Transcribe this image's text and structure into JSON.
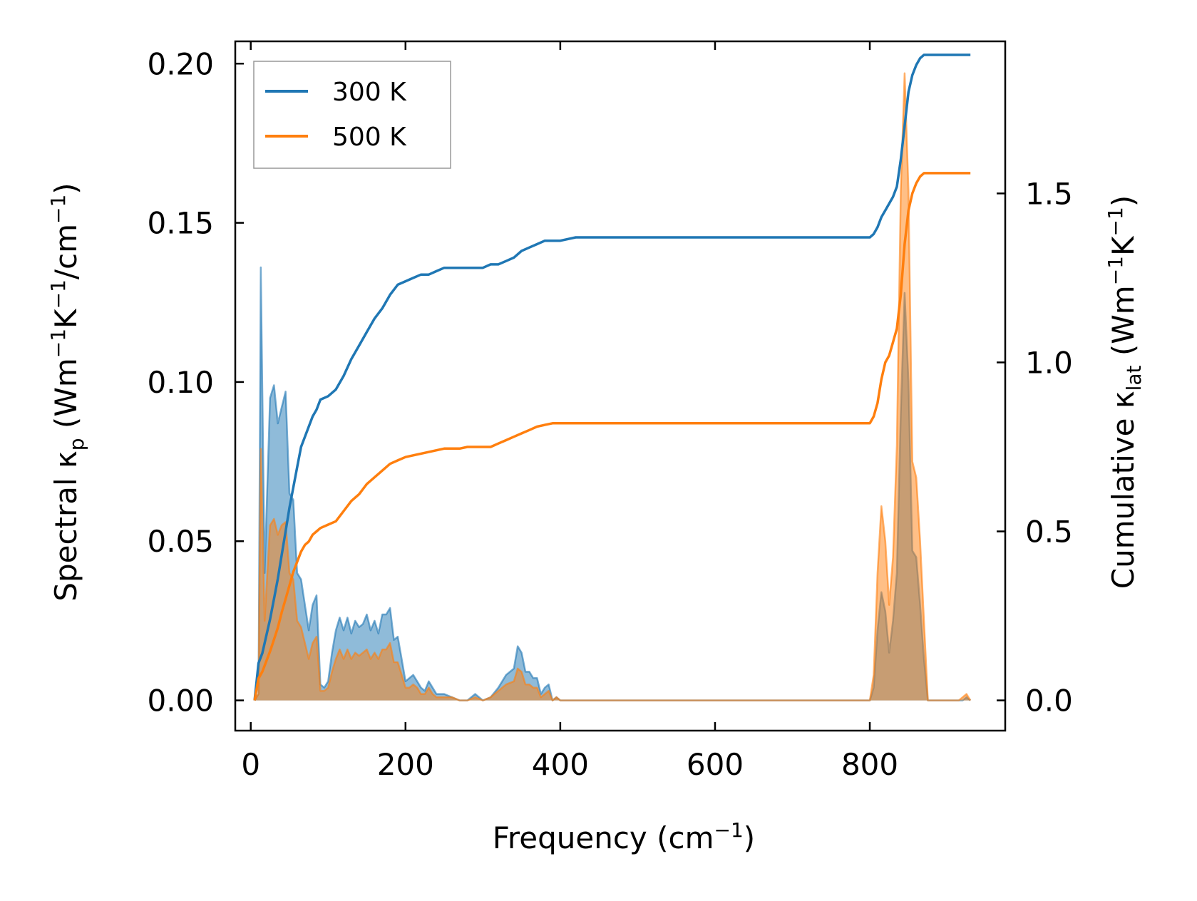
{
  "chart_data": {
    "type": "line",
    "xlabel": "Frequency (cm",
    "xlabel_sup": "−1",
    "xlabel_tail": ")",
    "ylabel_left": {
      "main": "Spectral κ",
      "sub": "p",
      "unit_a": " (Wm",
      "sup_a": "−1",
      "unit_b": "K",
      "sup_b": "−1",
      "unit_c": "/cm",
      "sup_c": "−1",
      "tail": ")"
    },
    "ylabel_right": {
      "main": "Cumulative κ",
      "sub": "lat",
      "unit_a": " (Wm",
      "sup_a": "−1",
      "unit_b": "K",
      "sup_b": "−1",
      "tail": ")"
    },
    "xlim": [
      -20,
      975
    ],
    "ylim_left": [
      -0.0095,
      0.207
    ],
    "ylim_right": [
      -0.0895,
      1.95
    ],
    "x_ticks": [
      0,
      200,
      400,
      600,
      800
    ],
    "x_tick_labels": [
      "0",
      "200",
      "400",
      "600",
      "800"
    ],
    "y_left_ticks": [
      0,
      0.05,
      0.1,
      0.15,
      0.2
    ],
    "y_left_tick_labels": [
      "0.00",
      "0.05",
      "0.10",
      "0.15",
      "0.20"
    ],
    "y_right_ticks": [
      0,
      0.5,
      1.0,
      1.5
    ],
    "y_right_tick_labels": [
      "0.0",
      "0.5",
      "1.0",
      "1.5"
    ],
    "legend": {
      "position": "top-left",
      "entries": [
        "300 K",
        "500 K"
      ]
    },
    "colors": {
      "300 K": "#1f77b4",
      "500 K": "#ff7f0e"
    },
    "spectral_series": [
      {
        "name": "300 K spectral",
        "axis": "left",
        "color": "#1f77b4",
        "x": [
          5,
          10,
          13,
          18,
          25,
          30,
          35,
          40,
          45,
          50,
          55,
          60,
          65,
          70,
          75,
          80,
          85,
          90,
          95,
          100,
          105,
          110,
          115,
          120,
          125,
          130,
          135,
          140,
          145,
          150,
          155,
          160,
          165,
          170,
          175,
          180,
          185,
          190,
          195,
          200,
          205,
          210,
          215,
          220,
          225,
          230,
          235,
          240,
          250,
          260,
          270,
          280,
          290,
          300,
          310,
          320,
          330,
          340,
          345,
          350,
          355,
          360,
          365,
          370,
          375,
          380,
          385,
          390,
          395,
          400,
          410,
          420,
          800,
          805,
          810,
          815,
          820,
          825,
          830,
          835,
          840,
          845,
          850,
          855,
          860,
          865,
          870,
          875,
          880,
          900,
          910,
          915,
          920,
          925,
          930
        ],
        "y": [
          0,
          0.002,
          0.136,
          0.04,
          0.095,
          0.099,
          0.087,
          0.092,
          0.097,
          0.065,
          0.063,
          0.04,
          0.038,
          0.03,
          0.022,
          0.03,
          0.033,
          0.005,
          0.004,
          0.006,
          0.015,
          0.022,
          0.026,
          0.022,
          0.026,
          0.021,
          0.025,
          0.023,
          0.024,
          0.027,
          0.022,
          0.025,
          0.021,
          0.027,
          0.027,
          0.029,
          0.019,
          0.02,
          0.013,
          0.006,
          0.007,
          0.008,
          0.006,
          0.004,
          0.003,
          0.006,
          0.004,
          0.002,
          0.002,
          0.001,
          0,
          0,
          0.002,
          0,
          0.001,
          0.004,
          0.008,
          0.01,
          0.017,
          0.015,
          0.009,
          0.009,
          0.007,
          0.007,
          0.002,
          0.004,
          0.005,
          0,
          0.001,
          0,
          0,
          0,
          0,
          0.004,
          0.022,
          0.034,
          0.028,
          0.015,
          0.025,
          0.04,
          0.09,
          0.128,
          0.1,
          0.047,
          0.045,
          0.03,
          0.013,
          0,
          0,
          0,
          0,
          0,
          0,
          0.001,
          0
        ]
      },
      {
        "name": "500 K spectral",
        "axis": "left",
        "color": "#ff7f0e",
        "x": [
          5,
          10,
          13,
          18,
          25,
          30,
          35,
          40,
          45,
          50,
          55,
          60,
          65,
          70,
          75,
          80,
          85,
          90,
          95,
          100,
          105,
          110,
          115,
          120,
          125,
          130,
          135,
          140,
          145,
          150,
          155,
          160,
          165,
          170,
          175,
          180,
          185,
          190,
          195,
          200,
          205,
          210,
          215,
          220,
          225,
          230,
          235,
          240,
          250,
          260,
          270,
          280,
          290,
          300,
          310,
          320,
          330,
          340,
          345,
          350,
          355,
          360,
          365,
          370,
          375,
          380,
          385,
          390,
          395,
          400,
          410,
          420,
          800,
          805,
          810,
          815,
          820,
          825,
          830,
          835,
          840,
          845,
          850,
          855,
          860,
          865,
          870,
          875,
          880,
          900,
          910,
          915,
          920,
          925,
          930
        ],
        "y": [
          0,
          0.002,
          0.079,
          0.025,
          0.055,
          0.057,
          0.052,
          0.055,
          0.056,
          0.04,
          0.038,
          0.025,
          0.023,
          0.018,
          0.013,
          0.018,
          0.02,
          0.003,
          0.003,
          0.004,
          0.009,
          0.013,
          0.016,
          0.013,
          0.016,
          0.013,
          0.015,
          0.014,
          0.015,
          0.016,
          0.013,
          0.015,
          0.013,
          0.016,
          0.016,
          0.018,
          0.012,
          0.012,
          0.008,
          0.004,
          0.004,
          0.005,
          0.004,
          0.002,
          0.002,
          0.004,
          0.002,
          0.001,
          0.001,
          0.001,
          0,
          0,
          0.001,
          0,
          0.001,
          0.003,
          0.005,
          0.006,
          0.01,
          0.009,
          0.005,
          0.005,
          0.004,
          0.004,
          0.001,
          0.002,
          0.003,
          0,
          0.001,
          0,
          0,
          0,
          0,
          0.008,
          0.04,
          0.061,
          0.05,
          0.03,
          0.045,
          0.08,
          0.16,
          0.197,
          0.16,
          0.075,
          0.07,
          0.05,
          0.025,
          0,
          0,
          0,
          0,
          0,
          0.001,
          0.002,
          0
        ]
      }
    ],
    "cumulative_series": [
      {
        "name": "300 K",
        "axis": "right",
        "color": "#1f77b4",
        "x": [
          5,
          10,
          15,
          20,
          25,
          30,
          35,
          40,
          45,
          50,
          55,
          60,
          65,
          70,
          75,
          80,
          85,
          90,
          100,
          110,
          120,
          130,
          140,
          150,
          160,
          170,
          180,
          190,
          200,
          210,
          220,
          230,
          240,
          250,
          260,
          270,
          280,
          290,
          300,
          310,
          320,
          330,
          340,
          350,
          360,
          370,
          380,
          390,
          400,
          420,
          500,
          600,
          700,
          795,
          800,
          805,
          810,
          815,
          820,
          825,
          830,
          835,
          840,
          845,
          850,
          855,
          860,
          865,
          870,
          875,
          880,
          900,
          930
        ],
        "y": [
          0,
          0.11,
          0.14,
          0.19,
          0.24,
          0.3,
          0.36,
          0.43,
          0.5,
          0.57,
          0.63,
          0.69,
          0.75,
          0.78,
          0.81,
          0.84,
          0.86,
          0.89,
          0.9,
          0.92,
          0.96,
          1.01,
          1.05,
          1.09,
          1.13,
          1.16,
          1.2,
          1.23,
          1.24,
          1.25,
          1.26,
          1.26,
          1.27,
          1.28,
          1.28,
          1.28,
          1.28,
          1.28,
          1.28,
          1.29,
          1.29,
          1.3,
          1.31,
          1.33,
          1.34,
          1.35,
          1.36,
          1.36,
          1.36,
          1.37,
          1.37,
          1.37,
          1.37,
          1.37,
          1.37,
          1.38,
          1.4,
          1.43,
          1.45,
          1.47,
          1.49,
          1.52,
          1.6,
          1.7,
          1.8,
          1.85,
          1.88,
          1.9,
          1.91,
          1.91,
          1.91,
          1.91,
          1.91
        ]
      },
      {
        "name": "500 K",
        "axis": "right",
        "color": "#ff7f0e",
        "x": [
          5,
          10,
          15,
          20,
          25,
          30,
          35,
          40,
          45,
          50,
          55,
          60,
          65,
          70,
          75,
          80,
          85,
          90,
          100,
          110,
          120,
          130,
          140,
          150,
          160,
          170,
          180,
          190,
          200,
          210,
          220,
          230,
          240,
          250,
          260,
          270,
          280,
          290,
          300,
          310,
          320,
          330,
          340,
          350,
          360,
          370,
          380,
          390,
          400,
          420,
          500,
          600,
          700,
          795,
          800,
          805,
          810,
          815,
          820,
          825,
          830,
          835,
          840,
          845,
          850,
          855,
          860,
          865,
          870,
          875,
          880,
          900,
          930
        ],
        "y": [
          0,
          0.065,
          0.085,
          0.115,
          0.145,
          0.18,
          0.215,
          0.26,
          0.3,
          0.34,
          0.38,
          0.41,
          0.44,
          0.46,
          0.47,
          0.49,
          0.5,
          0.51,
          0.52,
          0.53,
          0.56,
          0.59,
          0.61,
          0.64,
          0.66,
          0.68,
          0.7,
          0.71,
          0.72,
          0.725,
          0.73,
          0.735,
          0.74,
          0.745,
          0.745,
          0.745,
          0.75,
          0.75,
          0.75,
          0.75,
          0.76,
          0.77,
          0.78,
          0.79,
          0.8,
          0.81,
          0.815,
          0.82,
          0.82,
          0.82,
          0.82,
          0.82,
          0.82,
          0.82,
          0.82,
          0.84,
          0.88,
          0.95,
          1.0,
          1.02,
          1.06,
          1.1,
          1.2,
          1.35,
          1.45,
          1.5,
          1.53,
          1.55,
          1.56,
          1.56,
          1.56,
          1.56,
          1.56
        ]
      }
    ]
  }
}
